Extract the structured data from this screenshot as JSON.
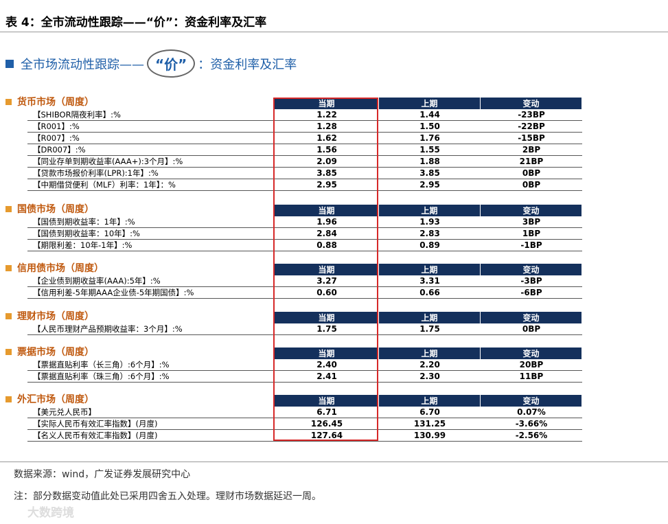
{
  "header": {
    "title": "表 4：全市流动性跟踪——“价”：资金利率及汇率"
  },
  "subtitle": {
    "prefix": "全市场流动性跟踪——",
    "highlight": "“价”",
    "suffix": "：资金利率及汇率"
  },
  "sections": [
    {
      "title": "货币市场（周度）",
      "columns": [
        "当期",
        "上期",
        "变动"
      ],
      "rows": [
        [
          "【SHIBOR隔夜利率】:%",
          "1.22",
          "1.44",
          "-23BP"
        ],
        [
          "【R001】:%",
          "1.28",
          "1.50",
          "-22BP"
        ],
        [
          "【R007】:%",
          "1.62",
          "1.76",
          "-15BP"
        ],
        [
          "【DR007】:%",
          "1.56",
          "1.55",
          "2BP"
        ],
        [
          "【同业存单到期收益率(AAA+):3个月】:%",
          "2.09",
          "1.88",
          "21BP"
        ],
        [
          "【贷款市场报价利率(LPR):1年】:%",
          "3.85",
          "3.85",
          "0BP"
        ],
        [
          "【中期借贷便利（MLF）利率：1年】：%",
          "2.95",
          "2.95",
          "0BP"
        ]
      ]
    },
    {
      "title": "国债市场（周度）",
      "columns": [
        "当期",
        "上期",
        "变动"
      ],
      "rows": [
        [
          "【国债到期收益率：1年】:%",
          "1.96",
          "1.93",
          "3BP"
        ],
        [
          "【国债到期收益率：10年】:%",
          "2.84",
          "2.83",
          "1BP"
        ],
        [
          "【期限利差：10年-1年】:%",
          "0.88",
          "0.89",
          "-1BP"
        ]
      ]
    },
    {
      "title": "信用债市场（周度）",
      "columns": [
        "当期",
        "上期",
        "变动"
      ],
      "rows": [
        [
          "【企业债到期收益率(AAA):5年】:%",
          "3.27",
          "3.31",
          "-3BP"
        ],
        [
          "【信用利差-5年期AAA企业债-5年期国债】:%",
          "0.60",
          "0.66",
          "-6BP"
        ]
      ]
    },
    {
      "title": "理财市场（周度）",
      "columns": [
        "当期",
        "上期",
        "变动"
      ],
      "rows": [
        [
          "【人民币理财产品预期收益率：3个月】:%",
          "1.75",
          "1.75",
          "0BP"
        ]
      ]
    },
    {
      "title": "票据市场（周度）",
      "columns": [
        "当期",
        "上期",
        "变动"
      ],
      "rows": [
        [
          "【票据直贴利率（长三角）:6个月】:%",
          "2.40",
          "2.20",
          "20BP"
        ],
        [
          "【票据直贴利率（珠三角）:6个月】:%",
          "2.41",
          "2.30",
          "11BP"
        ]
      ]
    },
    {
      "title": "外汇市场（周度）",
      "columns": [
        "当期",
        "上期",
        "变动"
      ],
      "rows": [
        [
          "【美元兑人民币】",
          "6.71",
          "6.70",
          "0.07%"
        ],
        [
          "【实际人民币有效汇率指数】(月度)",
          "126.45",
          "131.25",
          "-3.66%"
        ],
        [
          "【名义人民币有效汇率指数】(月度)",
          "127.64",
          "130.99",
          "-2.56%"
        ]
      ]
    }
  ],
  "footer": {
    "source": "数据来源：wind，广发证券发展研究中心",
    "note": "注：部分数据变动值此处已采用四舍五入处理。理财市场数据延迟一周。"
  },
  "watermark": "大数跨境"
}
